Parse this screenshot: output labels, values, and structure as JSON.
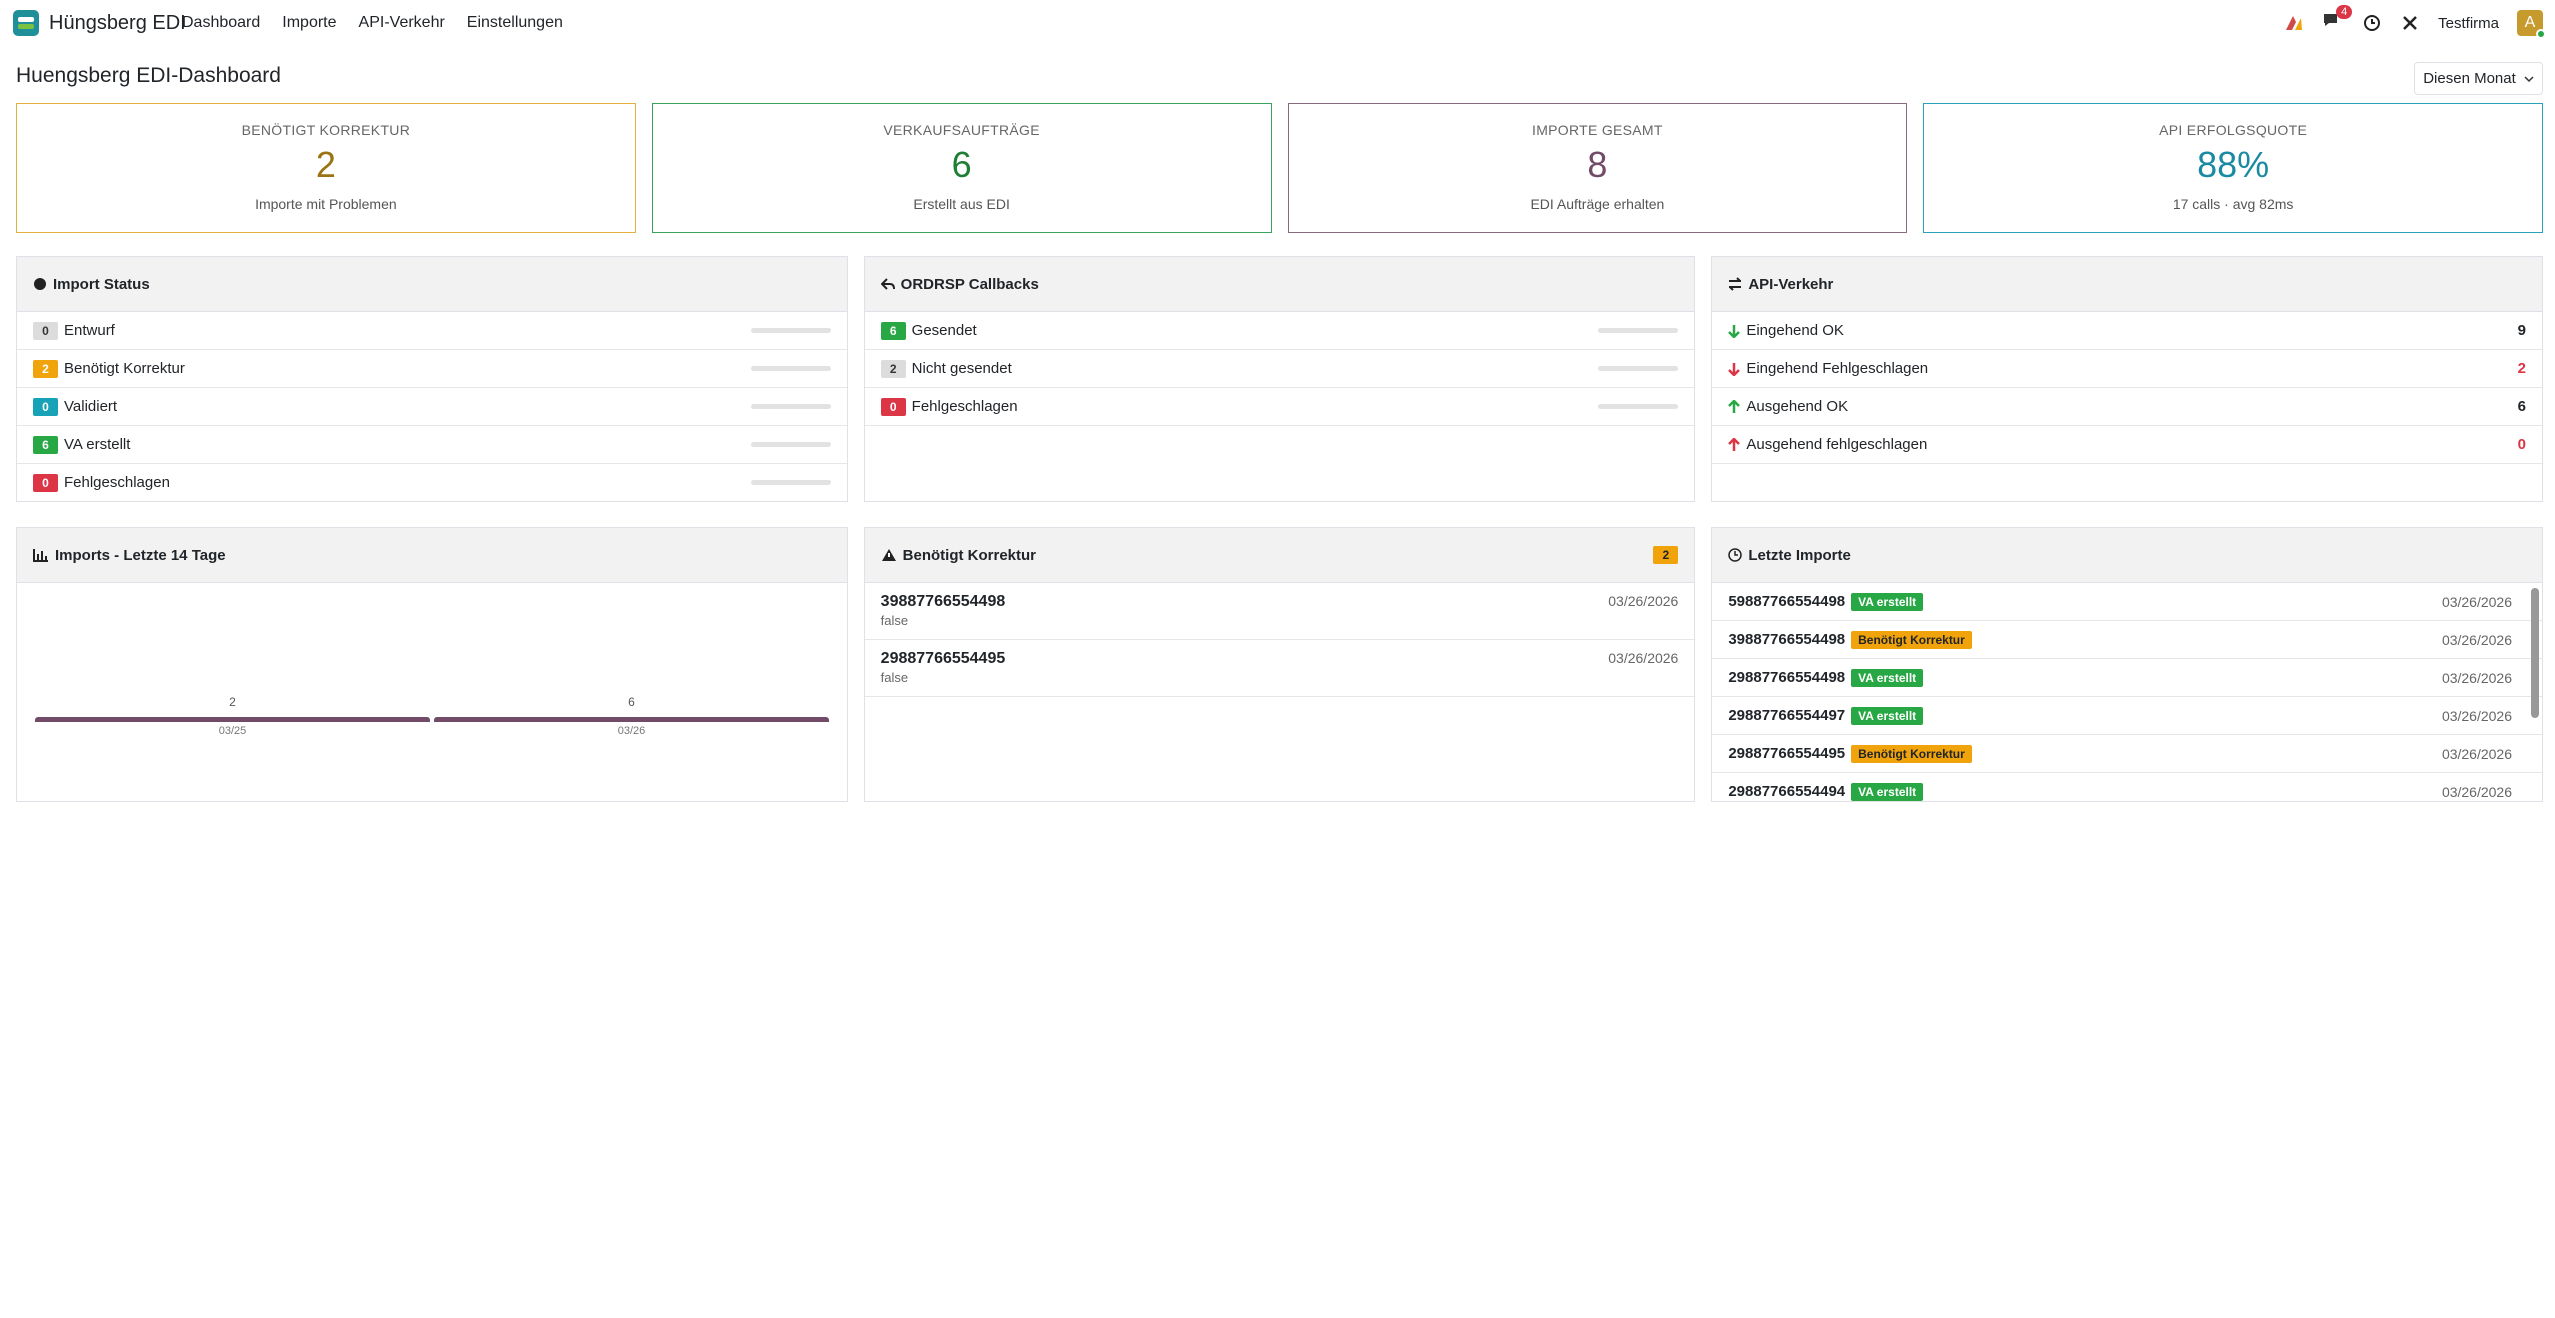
{
  "navbar": {
    "brand": "Hüngsberg EDI",
    "menu": [
      "Dashboard",
      "Importe",
      "API-Verkehr",
      "Einstellungen"
    ],
    "notification_count": 4,
    "company": "Testfirma",
    "avatar": "A"
  },
  "header": {
    "title": "Huengsberg EDI-Dashboard",
    "period": "Diesen Monat"
  },
  "kpis": [
    {
      "label": "BENÖTIGT KORREKTUR",
      "value": "2",
      "note": "Importe mit Problemen",
      "color": "#e4b040",
      "value_color": "#9a7412"
    },
    {
      "label": "VERKAUFSAUFTRÄGE",
      "value": "6",
      "note": "Erstellt aus EDI",
      "color": "#3aa55a",
      "value_color": "#1e7e34"
    },
    {
      "label": "IMPORTE GESAMT",
      "value": "8",
      "note": "EDI Aufträge erhalten",
      "color": "#8a6a80",
      "value_color": "#714b67"
    },
    {
      "label": "API ERFOLGSQUOTE",
      "value": "88%",
      "note": "17 calls · avg 82ms",
      "color": "#26a1b8",
      "value_color": "#1a8aa3"
    }
  ],
  "import_status": {
    "title": "Import Status",
    "rows": [
      {
        "count": 0,
        "label": "Entwurf",
        "color": "#dcdcdc"
      },
      {
        "count": 2,
        "label": "Benötigt Korrektur",
        "color": "#f0a30a"
      },
      {
        "count": 0,
        "label": "Validiert",
        "color": "#17a2b8"
      },
      {
        "count": 6,
        "label": "VA erstellt",
        "color": "#28a745"
      },
      {
        "count": 0,
        "label": "Fehlgeschlagen",
        "color": "#dc3545"
      }
    ]
  },
  "ordrsp": {
    "title": "ORDRSP Callbacks",
    "rows": [
      {
        "count": 6,
        "label": "Gesendet",
        "color": "#28a745"
      },
      {
        "count": 2,
        "label": "Nicht gesendet",
        "color": "#dcdcdc"
      },
      {
        "count": 0,
        "label": "Fehlgeschlagen",
        "color": "#dc3545"
      }
    ]
  },
  "api": {
    "title": "API-Verkehr",
    "rows": [
      {
        "label": "Eingehend OK",
        "count": 9,
        "color": "#212529"
      },
      {
        "label": "Eingehend Fehlgeschlagen",
        "count": 2,
        "color": "#dc3545"
      },
      {
        "label": "Ausgehend OK",
        "count": 6,
        "color": "#212529"
      },
      {
        "label": "Ausgehend fehlgeschlagen",
        "count": 0,
        "color": "#dc3545"
      }
    ]
  },
  "chart": {
    "title": "Imports - Letzte 14 Tage",
    "categories": [
      "03/25",
      "03/26"
    ],
    "values": [
      2,
      6
    ],
    "color": "#714b67"
  },
  "correction": {
    "title": "Benötigt Korrektur",
    "count": 2,
    "items": [
      {
        "id": "39887766554498",
        "detail": "false",
        "date": "03/26/2026"
      },
      {
        "id": "29887766554495",
        "detail": "false",
        "date": "03/26/2026"
      }
    ]
  },
  "recent": {
    "title": "Letzte Importe",
    "items": [
      {
        "id": "59887766554498",
        "status": "VA erstellt",
        "color": "#28a745",
        "text_color": "#fff",
        "date": "03/26/2026"
      },
      {
        "id": "39887766554498",
        "status": "Benötigt Korrektur",
        "color": "#f0a30a",
        "text_color": "#212529",
        "date": "03/26/2026"
      },
      {
        "id": "29887766554498",
        "status": "VA erstellt",
        "color": "#28a745",
        "text_color": "#fff",
        "date": "03/26/2026"
      },
      {
        "id": "29887766554497",
        "status": "VA erstellt",
        "color": "#28a745",
        "text_color": "#fff",
        "date": "03/26/2026"
      },
      {
        "id": "29887766554495",
        "status": "Benötigt Korrektur",
        "color": "#f0a30a",
        "text_color": "#212529",
        "date": "03/26/2026"
      },
      {
        "id": "29887766554494",
        "status": "VA erstellt",
        "color": "#28a745",
        "text_color": "#fff",
        "date": "03/26/2026"
      }
    ]
  }
}
